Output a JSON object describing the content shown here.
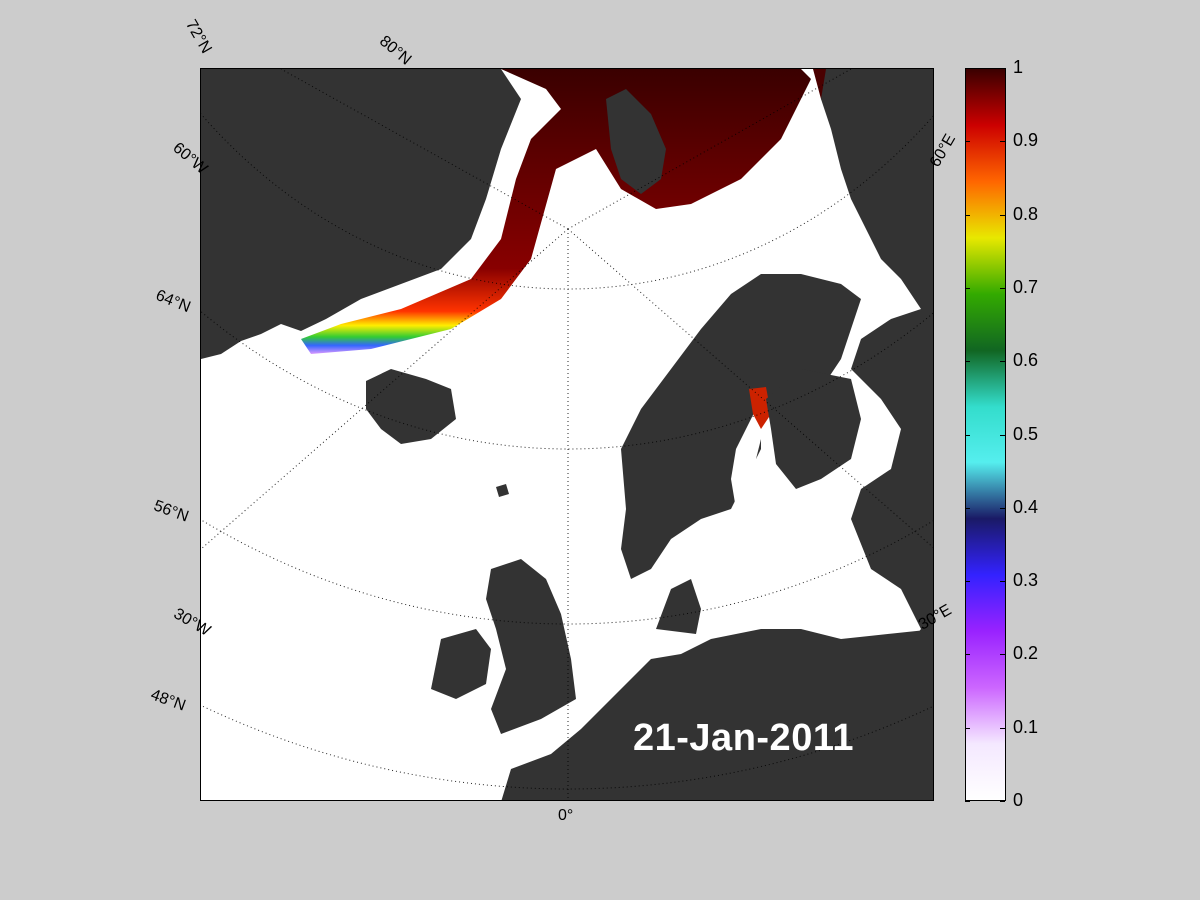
{
  "map": {
    "date": "21-Jan-2011",
    "land_color": "#333333",
    "ocean_color": "#ffffff",
    "lat_labels": [
      "72°N",
      "80°N",
      "60°W",
      "64°N",
      "56°N",
      "30°W",
      "48°N",
      "0°",
      "60°E",
      "30°E"
    ]
  },
  "colorbar": {
    "ticks": [
      "1",
      "0.9",
      "0.8",
      "0.7",
      "0.6",
      "0.5",
      "0.4",
      "0.3",
      "0.2",
      "0.1",
      "0"
    ],
    "colors": [
      "#3a0000",
      "#cc0000",
      "#ff6600",
      "#e8e800",
      "#33aa00",
      "#116622",
      "#33ddcc",
      "#55eeee",
      "#1a1a66",
      "#3322ff",
      "#9922ff",
      "#cc66ff",
      "#f4e8ff",
      "#ffffff"
    ]
  }
}
